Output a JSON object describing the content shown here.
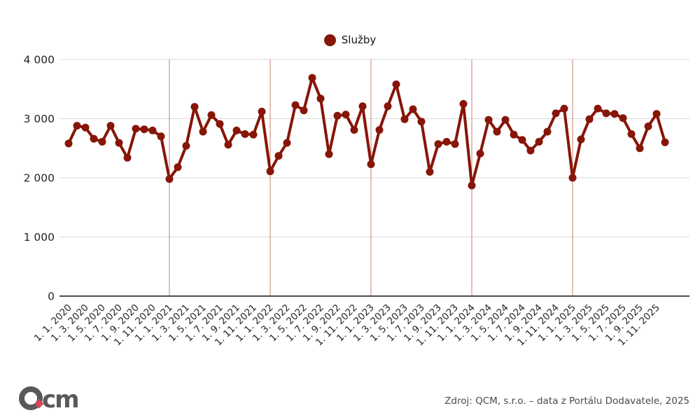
{
  "legend": {
    "label": "Služby"
  },
  "footer": {
    "source_text": "Zdroj: QCM, s.r.o. – data z Portálu Dodavatele, 2025"
  },
  "logo": {
    "letter_q": "Q",
    "letters_cm": "cm",
    "gray": "#58595b",
    "diamond_color": "#d6455d"
  },
  "colors": {
    "series": "#871508",
    "gridline": "#d9d9d9",
    "year_line": "#c9806f",
    "axis_line": "#4d4d4d",
    "tick_text": "#262626"
  },
  "chart_data": {
    "type": "line",
    "title": "Služby",
    "legend_position": "top-center",
    "grid": "horizontal",
    "xlabel": "",
    "ylabel": "",
    "ylim": [
      0,
      4000
    ],
    "y_ticks": [
      {
        "value": 0,
        "label": "0"
      },
      {
        "value": 1000,
        "label": "1 000"
      },
      {
        "value": 2000,
        "label": "2 000"
      },
      {
        "value": 3000,
        "label": "3 000"
      },
      {
        "value": 4000,
        "label": "4 000"
      }
    ],
    "x_labels": [
      "1. 1. 2020",
      "1. 3. 2020",
      "1. 5. 2020",
      "1. 7. 2020",
      "1. 9. 2020",
      "1. 11. 2020",
      "1. 1. 2021",
      "1. 3. 2021",
      "1. 5. 2021",
      "1. 7. 2021",
      "1. 9. 2021",
      "1. 11. 2021",
      "1. 1. 2022",
      "1. 3. 2022",
      "1. 5. 2022",
      "1. 7. 2022",
      "1. 9. 2022",
      "1. 11. 2022",
      "1. 1. 2023",
      "1. 3. 2023",
      "1. 5. 2023",
      "1. 7. 2023",
      "1. 9. 2023",
      "1. 11. 2023",
      "1. 1. 2024",
      "1. 3. 2024",
      "1. 5. 2024",
      "1. 7. 2024",
      "1. 9. 2024",
      "1. 11. 2024",
      "1. 1. 2025",
      "1. 3. 2025",
      "1. 5. 2025",
      "1. 7. 2025",
      "1. 9. 2025",
      "1. 11. 2025"
    ],
    "x_label_every_n_points": 2,
    "year_line_indices": [
      12,
      24,
      36,
      48,
      60
    ],
    "series": [
      {
        "name": "Služby",
        "values": [
          2580,
          2880,
          2850,
          2660,
          2610,
          2880,
          2590,
          2340,
          2830,
          2820,
          2800,
          2700,
          1980,
          2180,
          2540,
          3200,
          2780,
          3060,
          2910,
          2560,
          2800,
          2740,
          2730,
          3120,
          2110,
          2370,
          2590,
          3230,
          3140,
          3690,
          3340,
          2400,
          3050,
          3070,
          2810,
          3210,
          2230,
          2810,
          3210,
          3580,
          2990,
          3160,
          2950,
          2100,
          2570,
          2610,
          2570,
          3250,
          1870,
          2410,
          2980,
          2780,
          2980,
          2730,
          2640,
          2460,
          2610,
          2780,
          3090,
          3170,
          2000,
          2650,
          2990,
          3170,
          3090,
          3080,
          3010,
          2740,
          2500,
          2870,
          3080,
          2600
        ]
      }
    ]
  }
}
